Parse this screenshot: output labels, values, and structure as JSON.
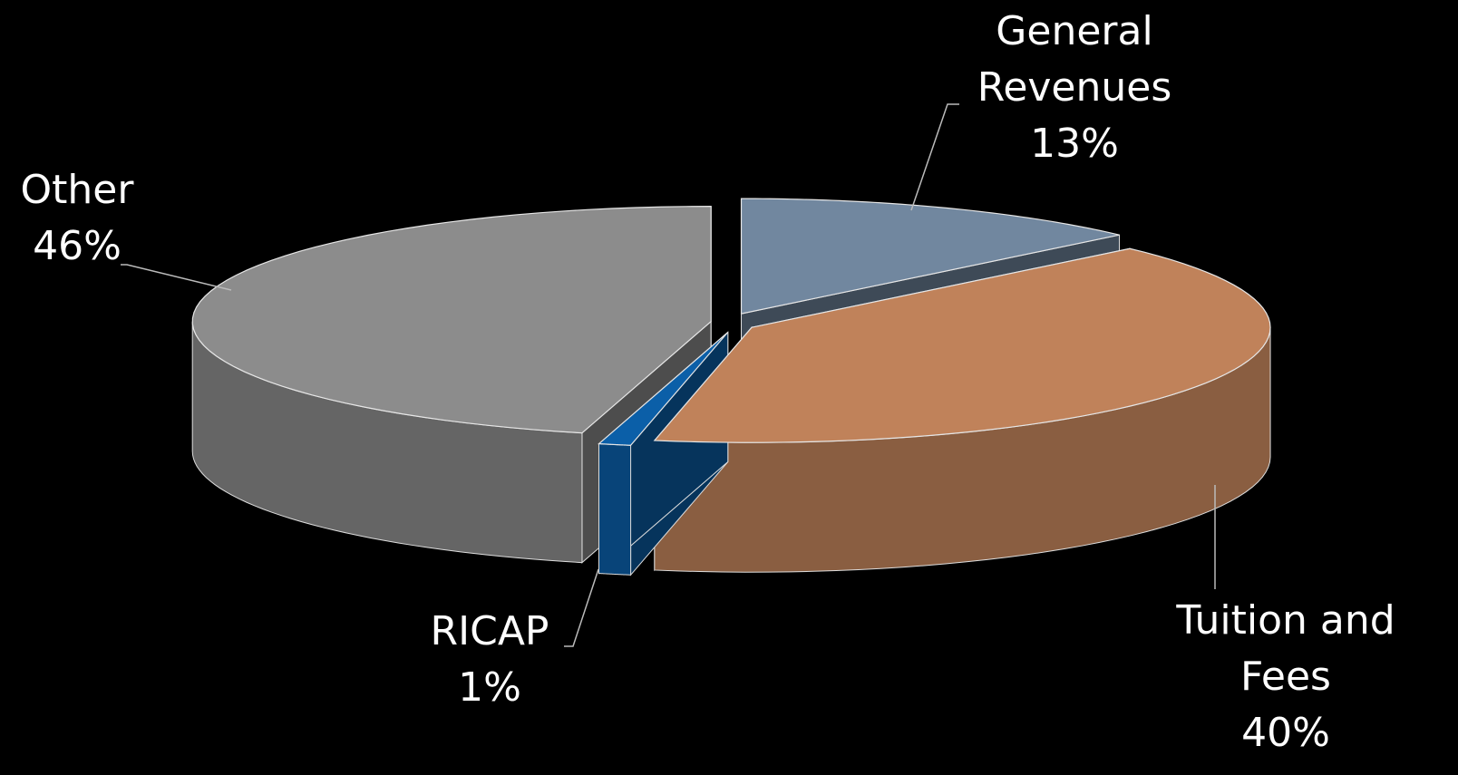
{
  "chart_data": {
    "type": "pie",
    "categories": [
      "General Revenues",
      "Tuition and Fees",
      "RICAP",
      "Other"
    ],
    "values": [
      13,
      40,
      1,
      46
    ],
    "value_labels": [
      "13%",
      "40%",
      "1%",
      "46%"
    ],
    "colors": [
      "#71879f",
      "#c0825a",
      "#0b5fa8",
      "#8c8c8c"
    ]
  }
}
